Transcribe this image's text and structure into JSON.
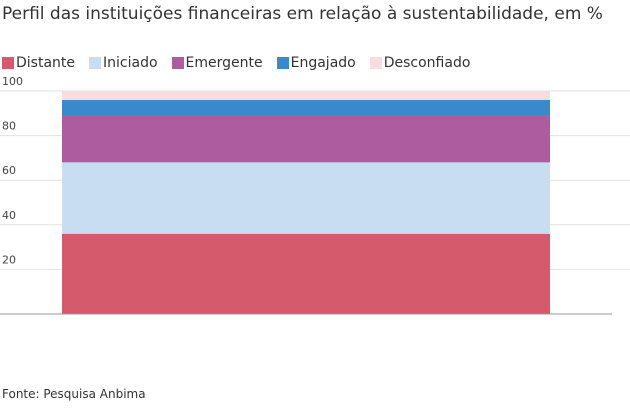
{
  "title": "Perfil das instituições financeiras em relação à sustentabilidade, em %",
  "source": "Fonte: Pesquisa Anbima",
  "chart_data": {
    "type": "bar",
    "stacked": true,
    "categories": [
      ""
    ],
    "ylim": [
      0,
      100
    ],
    "yticks": [
      "20",
      "40",
      "60",
      "80",
      "100"
    ],
    "grid": true,
    "legend_placement": "top-left",
    "series": [
      {
        "name": "Distante",
        "values": [
          36
        ],
        "color": "#d55a6b"
      },
      {
        "name": "Iniciado",
        "values": [
          32
        ],
        "color": "#c8dcf2"
      },
      {
        "name": "Emergente",
        "values": [
          21
        ],
        "color": "#ad5ca0"
      },
      {
        "name": "Engajado",
        "values": [
          7
        ],
        "color": "#3a8acb"
      },
      {
        "name": "Desconfiado",
        "values": [
          4
        ],
        "color": "#fadbe0"
      }
    ]
  }
}
